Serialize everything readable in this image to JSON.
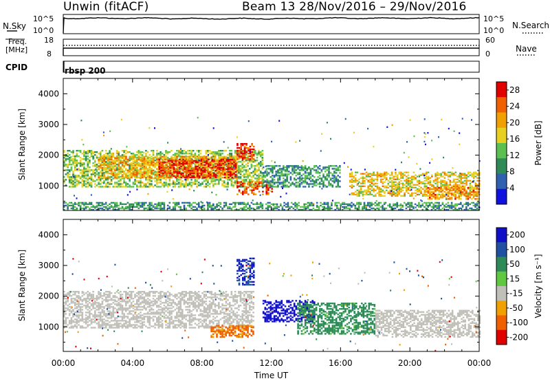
{
  "header": {
    "title": "Unwin (fitACF)",
    "subtitle": "Beam 13  28/Nov/2016 – 29/Nov/2016"
  },
  "top_panels": {
    "nsky_label": "N.Sky",
    "nsky_ticks": [
      "10^5",
      "10^0"
    ],
    "nsearch_label": "N.Search",
    "freq_label_1": "Freq.",
    "freq_label_2": "[MHz]",
    "freq_ticks": [
      "18",
      "8"
    ],
    "nave_ticks": [
      "60",
      "0"
    ],
    "nave_label": "Nave",
    "cpid_label": "CPID",
    "cpid_value": "rbsp  200"
  },
  "colors": {
    "power_scale": [
      "#1010e0",
      "#3060b0",
      "#2e8b57",
      "#5cc050",
      "#e8d020",
      "#f0a000",
      "#f06000",
      "#e00000"
    ],
    "velocity_scale": [
      "#1010c8",
      "#2050a0",
      "#2e8b57",
      "#60c840",
      "#c0c0b8",
      "#f0a000",
      "#f06000",
      "#e00000"
    ],
    "ground_scatter": "#c0c0b8"
  },
  "chart_data": [
    {
      "type": "heatmap",
      "name": "power",
      "x_label": "Time UT",
      "x_ticks": [
        "00:00",
        "04:00",
        "08:00",
        "12:00",
        "16:00",
        "20:00",
        "00:00"
      ],
      "x_range_hours": [
        0,
        24
      ],
      "ylabel": "Slant Range [km]",
      "y_ticks": [
        1000,
        2000,
        3000,
        4000
      ],
      "ylim": [
        200,
        4500
      ],
      "colorbar": {
        "label": "Power [dB]",
        "ticks": [
          4,
          8,
          12,
          16,
          20,
          24,
          28
        ],
        "range": [
          0,
          30
        ]
      },
      "regions": [
        {
          "t": [
            0.0,
            11.5
          ],
          "r": [
            1000,
            2200
          ],
          "value": 14
        },
        {
          "t": [
            2.0,
            10.0
          ],
          "r": [
            1300,
            2000
          ],
          "value": 20
        },
        {
          "t": [
            5.5,
            10.0
          ],
          "r": [
            1300,
            1900
          ],
          "value": 27
        },
        {
          "t": [
            10.0,
            12.0
          ],
          "r": [
            750,
            1200
          ],
          "value": 26
        },
        {
          "t": [
            10.0,
            11.0
          ],
          "r": [
            1900,
            2400
          ],
          "value": 26
        },
        {
          "t": [
            11.5,
            16.0
          ],
          "r": [
            1000,
            1700
          ],
          "value": 10
        },
        {
          "t": [
            16.5,
            24.0
          ],
          "r": [
            700,
            1500
          ],
          "value": 18
        },
        {
          "t": [
            21.0,
            24.0
          ],
          "r": [
            600,
            1000
          ],
          "value": 22
        },
        {
          "t": [
            0.0,
            24.0
          ],
          "r": [
            250,
            500
          ],
          "value": 10
        }
      ]
    },
    {
      "type": "heatmap",
      "name": "velocity",
      "x_label": "Time UT",
      "x_ticks": [
        "00:00",
        "04:00",
        "08:00",
        "12:00",
        "16:00",
        "20:00",
        "00:00"
      ],
      "x_range_hours": [
        0,
        24
      ],
      "ylabel": "Slant Range [km]",
      "y_ticks": [
        1000,
        2000,
        3000,
        4000
      ],
      "ylim": [
        200,
        4500
      ],
      "colorbar": {
        "label": "Velocity [m s⁻¹]",
        "ticks": [
          "200",
          "100",
          "50",
          "15",
          "-15",
          "-50",
          "-100",
          "-200"
        ],
        "range": [
          -250,
          250
        ]
      },
      "regions": [
        {
          "t": [
            0.0,
            11.0
          ],
          "r": [
            1000,
            2200
          ],
          "value": 0
        },
        {
          "t": [
            8.5,
            11.0
          ],
          "r": [
            700,
            1100
          ],
          "value": -60
        },
        {
          "t": [
            11.5,
            14.5
          ],
          "r": [
            1200,
            1900
          ],
          "value": 180
        },
        {
          "t": [
            13.5,
            18.0
          ],
          "r": [
            800,
            1800
          ],
          "value": 50
        },
        {
          "t": [
            18.0,
            24.0
          ],
          "r": [
            700,
            1600
          ],
          "value": 0
        },
        {
          "t": [
            10.0,
            11.0
          ],
          "r": [
            2400,
            3300
          ],
          "value": 150
        }
      ]
    }
  ]
}
